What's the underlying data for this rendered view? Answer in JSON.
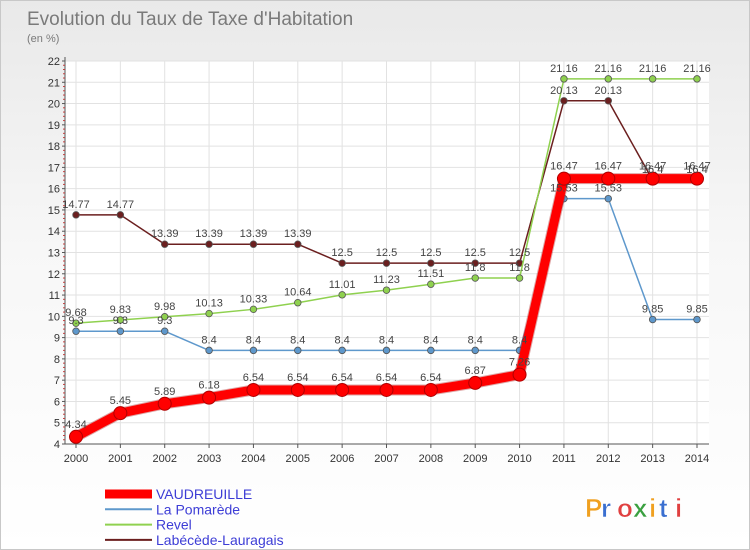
{
  "chart_data": {
    "type": "line",
    "title": "Evolution du Taux de Taxe d'Habitation",
    "subtitle": "(en %)",
    "x": [
      2000,
      2001,
      2002,
      2003,
      2004,
      2005,
      2006,
      2007,
      2008,
      2009,
      2010,
      2011,
      2012,
      2013,
      2014
    ],
    "ylim": [
      4,
      22
    ],
    "yticks": [
      4,
      5,
      6,
      7,
      8,
      9,
      10,
      11,
      12,
      13,
      14,
      15,
      16,
      17,
      18,
      19,
      20,
      21,
      22
    ],
    "grid": true,
    "legend_position": "bottom-left",
    "series": [
      {
        "name": "Labécède-Lauragais",
        "color": "#6b1f1f",
        "values": [
          14.77,
          14.77,
          13.39,
          13.39,
          13.39,
          13.39,
          12.5,
          12.5,
          12.5,
          12.5,
          12.5,
          20.13,
          20.13,
          16.4,
          16.4
        ],
        "labels": [
          "14.77",
          "14.77",
          "13.39",
          "13.39",
          "13.39",
          "13.39",
          "12.5",
          "12.5",
          "12.5",
          "12.5",
          "12.5",
          "20.13",
          "20.13",
          "16.4",
          "16.4"
        ]
      },
      {
        "name": "Revel",
        "color": "#8fd14f",
        "values": [
          9.68,
          9.83,
          9.98,
          10.13,
          10.33,
          10.64,
          11.01,
          11.23,
          11.51,
          11.8,
          11.8,
          21.16,
          21.16,
          21.16,
          21.16
        ],
        "labels": [
          "9.68",
          "9.83",
          "9.98",
          "10.13",
          "10.33",
          "10.64",
          "11.01",
          "11.23",
          "11.51",
          "11.8",
          "11.8",
          "21.16",
          "21.16",
          "21.16",
          "21.16"
        ]
      },
      {
        "name": "La Pomarède",
        "color": "#5e98cc",
        "values": [
          9.3,
          9.3,
          9.3,
          8.4,
          8.4,
          8.4,
          8.4,
          8.4,
          8.4,
          8.4,
          8.4,
          15.53,
          15.53,
          9.85,
          9.85
        ],
        "labels": [
          "9.3",
          "9.3",
          "9.3",
          "8.4",
          "8.4",
          "8.4",
          "8.4",
          "8.4",
          "8.4",
          "8.4",
          "8.4",
          "15.53",
          "15.53",
          "9.85",
          "9.85"
        ]
      },
      {
        "name": "VAUDREUILLE",
        "color": "#ff0000",
        "values": [
          4.34,
          5.45,
          5.89,
          6.18,
          6.54,
          6.54,
          6.54,
          6.54,
          6.54,
          6.87,
          7.26,
          16.47,
          16.47,
          16.47,
          16.47
        ],
        "labels": [
          "4.34",
          "5.45",
          "5.89",
          "6.18",
          "6.54",
          "6.54",
          "6.54",
          "6.54",
          "6.54",
          "6.87",
          "7.26",
          "16.47",
          "16.47",
          "16.47",
          "16.47"
        ]
      }
    ],
    "legend_order": [
      "VAUDREUILLE",
      "La Pomarède",
      "Revel",
      "Labécède-Lauragais"
    ],
    "legend_text_color": "#3d3dd6"
  },
  "logo": {
    "text": "Proxiti",
    "colors": [
      "#f0a020",
      "#3a6fd0",
      "#e04040",
      "#3aa040"
    ]
  }
}
